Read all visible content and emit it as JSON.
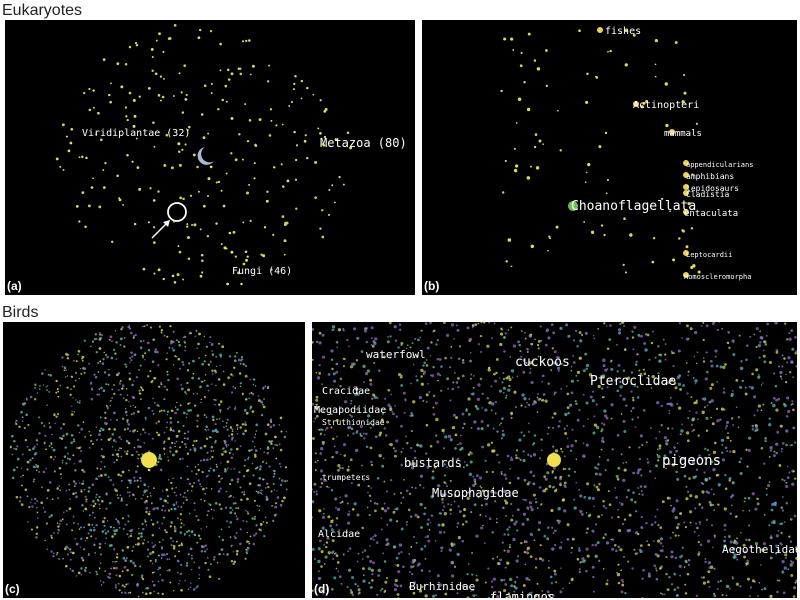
{
  "headers": [
    "Eukaryotes",
    "Birds"
  ],
  "panels": [
    {
      "label": "(a)",
      "annotations": [
        "Viridiplantae (32)",
        "Metazoa (80)",
        "Fungi (46)"
      ]
    },
    {
      "label": "(b)",
      "annotations": [
        "fishes",
        "Actinopteri",
        "mammals",
        "appendicularians",
        "amphibians",
        "lepidosaurs",
        "Cladistia",
        "Choanoflagellata",
        "entaculata",
        "Leptocardii",
        "Homoscleromorpha"
      ]
    },
    {
      "label": "(c)",
      "annotations": []
    },
    {
      "label": "(d)",
      "annotations": [
        "waterfowl",
        "cuckoos",
        "Pteroclidae",
        "Cracidae",
        "Megapodiidae",
        "Struthionidae",
        "trumpeters",
        "bustards",
        "pigeons",
        "Musophagidae",
        "Alcidae",
        "Aegothelidae",
        "Burhinidae",
        "flamingos"
      ]
    }
  ]
}
